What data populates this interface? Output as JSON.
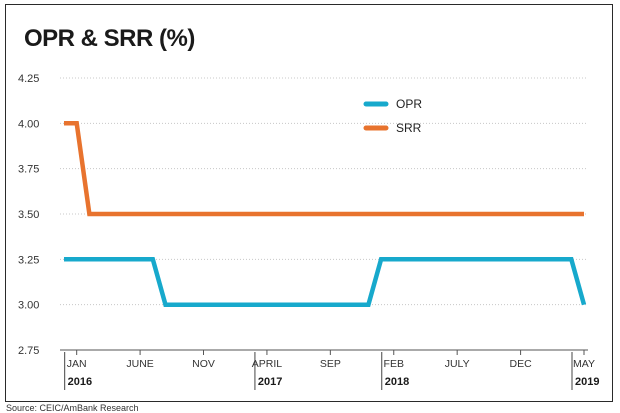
{
  "chart_data": {
    "type": "line",
    "title": "OPR & SRR (%)",
    "source": "Source: CEIC/AmBank Research",
    "ylim": [
      2.75,
      4.25
    ],
    "yticks": [
      "4.25",
      "4.00",
      "3.75",
      "3.50",
      "3.25",
      "3.00",
      "2.75"
    ],
    "xlim": [
      "2015-12",
      "2019-05"
    ],
    "x_ticks": [
      {
        "label": "JAN",
        "x": "2016-01",
        "year": "2016"
      },
      {
        "label": "JUNE",
        "x": "2016-06"
      },
      {
        "label": "NOV",
        "x": "2016-11"
      },
      {
        "label": "APRIL",
        "x": "2017-04",
        "year": "2017"
      },
      {
        "label": "SEP",
        "x": "2017-09"
      },
      {
        "label": "FEB",
        "x": "2018-02",
        "year": "2018"
      },
      {
        "label": "JULY",
        "x": "2018-07"
      },
      {
        "label": "DEC",
        "x": "2018-12"
      },
      {
        "label": "MAY",
        "x": "2019-05",
        "year": "2019"
      }
    ],
    "grid": true,
    "legend_position": "top-right",
    "series": [
      {
        "name": "OPR",
        "color": "#17a9cc",
        "points": [
          [
            "2015-12",
            3.25
          ],
          [
            "2016-07",
            3.25
          ],
          [
            "2016-08",
            3.0
          ],
          [
            "2017-12",
            3.0
          ],
          [
            "2018-01",
            3.25
          ],
          [
            "2019-04",
            3.25
          ],
          [
            "2019-05",
            3.0
          ]
        ]
      },
      {
        "name": "SRR",
        "color": "#e8732e",
        "points": [
          [
            "2015-12",
            4.0
          ],
          [
            "2016-01",
            4.0
          ],
          [
            "2016-02",
            3.5
          ],
          [
            "2019-05",
            3.5
          ]
        ]
      }
    ]
  }
}
